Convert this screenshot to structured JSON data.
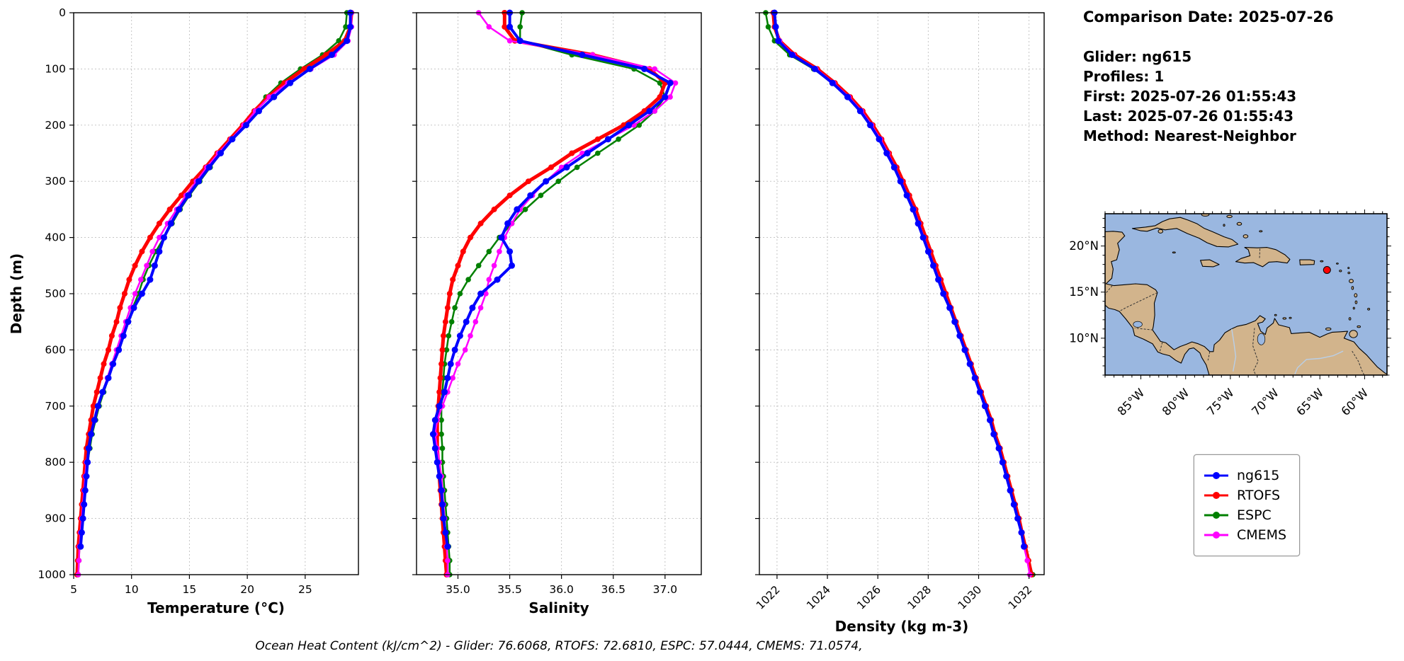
{
  "info": {
    "comparison_date": "Comparison Date: 2025-07-26",
    "glider": "Glider: ng615",
    "profiles": "Profiles: 1",
    "first": "First: 2025-07-26 01:55:43",
    "last": "Last: 2025-07-26 01:55:43",
    "method": "Method: Nearest-Neighbor"
  },
  "caption": "Ocean Heat Content (kJ/cm^2) - Glider: 76.6068,  RTOFS: 72.6810,  ESPC: 57.0444,  CMEMS: 71.0574,",
  "legend": {
    "items": [
      {
        "label": "ng615",
        "color": "#0000ff"
      },
      {
        "label": "RTOFS",
        "color": "#ff0000"
      },
      {
        "label": "ESPC",
        "color": "#008000"
      },
      {
        "label": "CMEMS",
        "color": "#ff00ff"
      }
    ]
  },
  "map": {
    "ocean_color": "#9ab7e0",
    "land_color": "#d2b48c",
    "coast_color": "#000000",
    "extent": {
      "lon_min": -89,
      "lon_max": -57.5,
      "lat_min": 6,
      "lat_max": 23.5
    },
    "lon_ticks": [
      {
        "label": "85°W",
        "value": -85
      },
      {
        "label": "80°W",
        "value": -80
      },
      {
        "label": "75°W",
        "value": -75
      },
      {
        "label": "70°W",
        "value": -70
      },
      {
        "label": "65°W",
        "value": -65
      },
      {
        "label": "60°W",
        "value": -60
      }
    ],
    "lat_ticks": [
      {
        "label": "20°N",
        "value": 20
      },
      {
        "label": "15°N",
        "value": 15
      },
      {
        "label": "10°N",
        "value": 10
      }
    ],
    "marker": {
      "lon": -64.2,
      "lat": 17.4,
      "color": "#ff0000"
    }
  },
  "depth_axis": {
    "label": "Depth (m)",
    "lim": [
      0,
      1000
    ],
    "ticks": [
      0,
      100,
      200,
      300,
      400,
      500,
      600,
      700,
      800,
      900,
      1000
    ]
  },
  "chart_data": [
    {
      "type": "line",
      "name": "temperature",
      "xlabel": "Temperature (°C)",
      "xlim": [
        5,
        29.6
      ],
      "xticks": [
        5,
        10,
        15,
        20,
        25
      ],
      "xtick_labels": [
        "5",
        "10",
        "15",
        "20",
        "25"
      ],
      "rotate_xticklabels": false,
      "depths": [
        0,
        25,
        50,
        75,
        100,
        125,
        150,
        175,
        200,
        225,
        250,
        275,
        300,
        325,
        350,
        375,
        400,
        425,
        450,
        475,
        500,
        525,
        550,
        575,
        600,
        625,
        650,
        675,
        700,
        725,
        750,
        775,
        800,
        825,
        850,
        875,
        900,
        925,
        950,
        975,
        1000
      ],
      "series": [
        {
          "name": "ng615",
          "color": "#0000ff",
          "values": [
            28.9,
            28.9,
            28.6,
            27.3,
            25.4,
            23.7,
            22.3,
            21.0,
            19.9,
            18.7,
            17.7,
            16.7,
            15.8,
            14.9,
            14.1,
            13.4,
            12.8,
            12.4,
            12.0,
            11.6,
            10.9,
            10.2,
            9.7,
            9.3,
            8.9,
            8.4,
            8.0,
            7.5,
            7.1,
            6.8,
            6.5,
            6.3,
            6.2,
            6.1,
            6.0,
            5.9,
            5.8,
            5.7,
            5.6,
            null,
            null
          ]
        },
        {
          "name": "RTOFS",
          "color": "#ff0000",
          "values": [
            29.0,
            28.9,
            28.4,
            26.8,
            24.9,
            23.2,
            21.8,
            20.6,
            19.6,
            18.5,
            17.4,
            16.4,
            15.3,
            14.3,
            13.3,
            12.4,
            11.6,
            10.9,
            10.3,
            9.8,
            9.4,
            9.0,
            8.7,
            8.3,
            8.0,
            7.6,
            7.3,
            7.0,
            6.7,
            6.5,
            6.3,
            6.1,
            6.0,
            5.9,
            5.8,
            5.7,
            5.6,
            5.5,
            5.4,
            5.35,
            5.3
          ]
        },
        {
          "name": "ESPC",
          "color": "#008000",
          "values": [
            28.6,
            28.5,
            27.9,
            26.5,
            24.6,
            22.9,
            21.6,
            20.6,
            19.7,
            18.7,
            17.7,
            16.8,
            15.9,
            15.0,
            14.2,
            13.5,
            12.8,
            12.1,
            11.5,
            11.0,
            10.6,
            10.1,
            9.7,
            9.3,
            8.9,
            8.4,
            8.0,
            7.6,
            7.2,
            6.9,
            6.6,
            6.4,
            6.2,
            6.0,
            5.9,
            5.8,
            5.7,
            5.6,
            5.5,
            5.45,
            5.4
          ]
        },
        {
          "name": "CMEMS",
          "color": "#ff00ff",
          "values": [
            29.0,
            29.0,
            28.7,
            27.5,
            25.5,
            23.5,
            21.9,
            20.7,
            19.7,
            18.6,
            17.5,
            16.5,
            15.6,
            14.7,
            13.9,
            13.1,
            12.4,
            11.8,
            11.3,
            10.8,
            10.3,
            9.9,
            9.5,
            9.1,
            8.7,
            8.3,
            7.9,
            7.5,
            7.1,
            6.8,
            6.5,
            6.3,
            6.1,
            6.0,
            5.9,
            5.8,
            5.7,
            5.6,
            5.5,
            5.45,
            5.4
          ]
        }
      ]
    },
    {
      "type": "line",
      "name": "salinity",
      "xlabel": "Salinity",
      "xlim": [
        34.6,
        37.35
      ],
      "xticks": [
        35.0,
        35.5,
        36.0,
        36.5,
        37.0
      ],
      "xtick_labels": [
        "35.0",
        "35.5",
        "36.0",
        "36.5",
        "37.0"
      ],
      "rotate_xticklabels": false,
      "depths": [
        0,
        25,
        50,
        75,
        100,
        125,
        150,
        175,
        200,
        225,
        250,
        275,
        300,
        325,
        350,
        375,
        400,
        425,
        450,
        475,
        500,
        525,
        550,
        575,
        600,
        625,
        650,
        675,
        700,
        725,
        750,
        775,
        800,
        825,
        850,
        875,
        900,
        925,
        950,
        975,
        1000
      ],
      "series": [
        {
          "name": "ng615",
          "color": "#0000ff",
          "values": [
            35.5,
            35.5,
            35.6,
            36.2,
            36.8,
            37.05,
            37.0,
            36.85,
            36.65,
            36.45,
            36.25,
            36.05,
            35.85,
            35.7,
            35.57,
            35.48,
            35.42,
            35.5,
            35.52,
            35.38,
            35.22,
            35.14,
            35.08,
            35.02,
            34.97,
            34.93,
            34.9,
            34.87,
            34.82,
            34.78,
            34.76,
            34.78,
            34.8,
            34.82,
            34.84,
            34.85,
            34.86,
            34.88,
            34.9,
            null,
            null
          ]
        },
        {
          "name": "RTOFS",
          "color": "#ff0000",
          "values": [
            35.45,
            35.45,
            35.55,
            36.3,
            36.85,
            37.0,
            36.95,
            36.8,
            36.6,
            36.35,
            36.1,
            35.9,
            35.68,
            35.5,
            35.35,
            35.22,
            35.12,
            35.05,
            35.0,
            34.95,
            34.92,
            34.9,
            34.88,
            34.86,
            34.85,
            34.84,
            34.83,
            34.82,
            34.81,
            34.8,
            34.8,
            34.8,
            34.81,
            34.82,
            34.83,
            34.84,
            34.85,
            34.86,
            34.87,
            34.88,
            34.89
          ]
        },
        {
          "name": "ESPC",
          "color": "#008000",
          "values": [
            35.62,
            35.6,
            35.6,
            36.1,
            36.7,
            36.95,
            37.0,
            36.9,
            36.75,
            36.55,
            36.35,
            36.15,
            35.97,
            35.8,
            35.65,
            35.52,
            35.4,
            35.3,
            35.2,
            35.1,
            35.02,
            34.97,
            34.94,
            34.91,
            34.89,
            34.87,
            34.86,
            34.85,
            34.84,
            34.84,
            34.84,
            34.85,
            34.85,
            34.86,
            34.87,
            34.88,
            34.89,
            34.9,
            34.91,
            34.92,
            34.92
          ]
        },
        {
          "name": "CMEMS",
          "color": "#ff00ff",
          "values": [
            35.2,
            35.3,
            35.5,
            36.3,
            36.9,
            37.1,
            37.05,
            36.9,
            36.7,
            36.45,
            36.2,
            36.0,
            35.85,
            35.72,
            35.6,
            35.52,
            35.45,
            35.4,
            35.35,
            35.3,
            35.27,
            35.22,
            35.17,
            35.12,
            35.07,
            35.0,
            34.95,
            34.9,
            34.85,
            34.8,
            34.78,
            34.8,
            34.82,
            34.84,
            34.85,
            34.86,
            34.87,
            34.88,
            34.89,
            34.9,
            34.9
          ]
        }
      ]
    },
    {
      "type": "line",
      "name": "density",
      "xlabel": "Density (kg m-3)",
      "xlim": [
        1021.3,
        1032.6
      ],
      "xticks": [
        1022,
        1024,
        1026,
        1028,
        1030,
        1032
      ],
      "xtick_labels": [
        "1022",
        "1024",
        "1026",
        "1028",
        "1030",
        "1032"
      ],
      "rotate_xticklabels": true,
      "depths": [
        0,
        25,
        50,
        75,
        100,
        125,
        150,
        175,
        200,
        225,
        250,
        275,
        300,
        325,
        350,
        375,
        400,
        425,
        450,
        475,
        500,
        525,
        550,
        575,
        600,
        625,
        650,
        675,
        700,
        725,
        750,
        775,
        800,
        825,
        850,
        875,
        900,
        925,
        950,
        975,
        1000
      ],
      "series": [
        {
          "name": "ng615",
          "color": "#0000ff",
          "values": [
            1021.9,
            1021.95,
            1022.05,
            1022.6,
            1023.5,
            1024.2,
            1024.8,
            1025.3,
            1025.7,
            1026.05,
            1026.35,
            1026.65,
            1026.9,
            1027.15,
            1027.4,
            1027.6,
            1027.8,
            1028.0,
            1028.2,
            1028.4,
            1028.6,
            1028.85,
            1029.05,
            1029.25,
            1029.45,
            1029.65,
            1029.85,
            1030.05,
            1030.25,
            1030.45,
            1030.6,
            1030.8,
            1030.95,
            1031.1,
            1031.25,
            1031.4,
            1031.55,
            1031.7,
            1031.8,
            null,
            null
          ]
        },
        {
          "name": "RTOFS",
          "color": "#ff0000",
          "values": [
            1021.85,
            1021.9,
            1022.1,
            1022.7,
            1023.6,
            1024.3,
            1024.9,
            1025.4,
            1025.8,
            1026.15,
            1026.45,
            1026.75,
            1027.0,
            1027.25,
            1027.5,
            1027.7,
            1027.9,
            1028.1,
            1028.3,
            1028.5,
            1028.7,
            1028.9,
            1029.1,
            1029.3,
            1029.5,
            1029.7,
            1029.9,
            1030.1,
            1030.3,
            1030.5,
            1030.65,
            1030.85,
            1031.0,
            1031.15,
            1031.3,
            1031.45,
            1031.6,
            1031.72,
            1031.85,
            1031.98,
            1032.1
          ]
        },
        {
          "name": "ESPC",
          "color": "#008000",
          "values": [
            1021.55,
            1021.65,
            1021.9,
            1022.5,
            1023.45,
            1024.2,
            1024.85,
            1025.35,
            1025.75,
            1026.1,
            1026.4,
            1026.7,
            1026.95,
            1027.2,
            1027.45,
            1027.65,
            1027.85,
            1028.05,
            1028.25,
            1028.45,
            1028.65,
            1028.88,
            1029.08,
            1029.28,
            1029.48,
            1029.68,
            1029.88,
            1030.08,
            1030.28,
            1030.48,
            1030.63,
            1030.83,
            1030.98,
            1031.13,
            1031.28,
            1031.43,
            1031.58,
            1031.72,
            1031.83,
            1031.98,
            1032.15
          ]
        },
        {
          "name": "CMEMS",
          "color": "#ff00ff",
          "values": [
            1021.9,
            1021.95,
            1022.1,
            1022.65,
            1023.55,
            1024.25,
            1024.85,
            1025.35,
            1025.75,
            1026.1,
            1026.4,
            1026.68,
            1026.93,
            1027.18,
            1027.43,
            1027.63,
            1027.83,
            1028.03,
            1028.23,
            1028.43,
            1028.63,
            1028.87,
            1029.07,
            1029.27,
            1029.47,
            1029.67,
            1029.87,
            1030.07,
            1030.27,
            1030.45,
            1030.6,
            1030.8,
            1030.95,
            1031.1,
            1031.25,
            1031.4,
            1031.55,
            1031.68,
            1031.8,
            1031.93,
            1032.03
          ]
        }
      ]
    }
  ]
}
